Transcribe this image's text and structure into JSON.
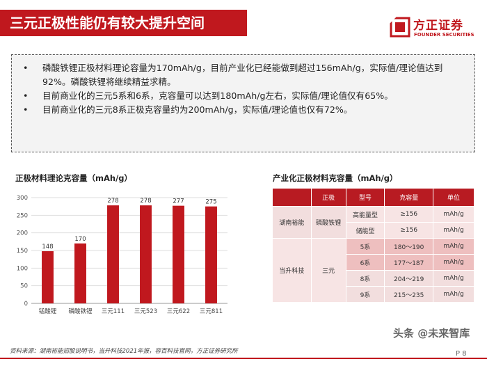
{
  "header": {
    "title": "三元正极性能仍有较大提升空间",
    "logo_cn": "方正证券",
    "logo_en": "FOUNDER SECURITIES"
  },
  "bullets": [
    "磷酸铁锂正极材料理论容量为170mAh/g，目前产业化已经能做到超过156mAh/g，实际值/理论值达到92%。磷酸铁锂将继续精益求精。",
    "目前商业化的三元5系和6系，克容量可以达到180mAh/g左右，实际值/理论值仅有65%。",
    "目前商业化的三元8系正极克容量约为200mAh/g，实际值/理论值也仅有72%。"
  ],
  "chart_title": "正极材料理论克容量（mAh/g）",
  "chart_data": {
    "type": "bar",
    "categories": [
      "锰酸锂",
      "磷酸铁锂",
      "三元111",
      "三元523",
      "三元622",
      "三元811"
    ],
    "values": [
      148,
      170,
      278,
      278,
      277,
      275
    ],
    "ylim": [
      0,
      300
    ],
    "yticks": [
      0,
      50,
      100,
      150,
      200,
      250,
      300
    ],
    "title": "正极材料理论克容量（mAh/g）",
    "xlabel": "",
    "ylabel": "",
    "bar_color": "#c0181e",
    "grid": true
  },
  "table_title": "产业化正极材料克容量（mAh/g）",
  "table": {
    "headers": [
      "",
      "正极",
      "型号",
      "克容量",
      "单位"
    ],
    "companies": [
      "湖南裕能",
      "当升科技"
    ],
    "cathodes": [
      "磷酸铁锂",
      "三元"
    ],
    "rows": [
      {
        "model": "高能量型",
        "capacity": "≥156",
        "unit": "mAh/g"
      },
      {
        "model": "储能型",
        "capacity": "≥156",
        "unit": "mAh/g"
      },
      {
        "model": "5系",
        "capacity": "180～190",
        "unit": "mAh/g"
      },
      {
        "model": "6系",
        "capacity": "177～187",
        "unit": "mAh/g"
      },
      {
        "model": "8系",
        "capacity": "204～219",
        "unit": "mAh/g"
      },
      {
        "model": "9系",
        "capacity": "215～235",
        "unit": "mAh/g"
      }
    ]
  },
  "source": "资料来源：湖南裕能招股说明书，当升科技2021年报，容百科技官网，方正证券研究所",
  "page_number": "P 8",
  "watermark": "头条 @未来智库"
}
